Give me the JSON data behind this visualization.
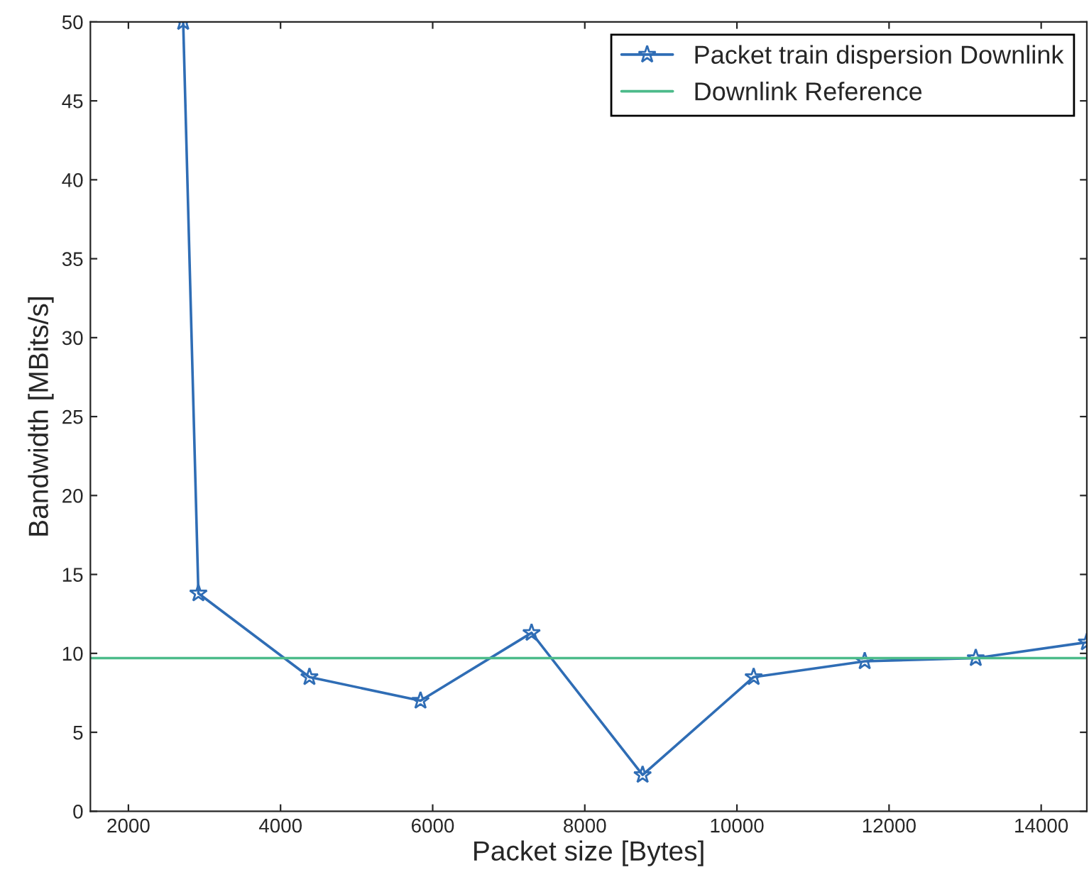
{
  "chart_data": {
    "type": "line",
    "xlabel": "Packet size [Bytes]",
    "ylabel": "Bandwidth [MBits/s]",
    "series": [
      {
        "name": "Packet train dispersion Downlink",
        "color": "#2f6db5",
        "marker": "star",
        "x": [
          2720,
          2920,
          4380,
          5840,
          7300,
          8760,
          10220,
          11680,
          13140,
          14600
        ],
        "values": [
          50,
          13.8,
          8.5,
          7.0,
          11.3,
          2.3,
          8.5,
          9.5,
          9.7,
          10.7
        ]
      },
      {
        "name": "Downlink Reference",
        "color": "#4cbb8a",
        "marker": "none",
        "x": [
          1500,
          14600
        ],
        "values": [
          9.7,
          9.7
        ]
      }
    ],
    "xlim": [
      1500,
      14600
    ],
    "xticks": [
      2000,
      4000,
      6000,
      8000,
      10000,
      12000,
      14000
    ],
    "ylim": [
      0,
      50
    ],
    "yticks": [
      0,
      5,
      10,
      15,
      20,
      25,
      30,
      35,
      40,
      45,
      50
    ],
    "grid": false,
    "legend": "top right",
    "line_style": "solid"
  }
}
